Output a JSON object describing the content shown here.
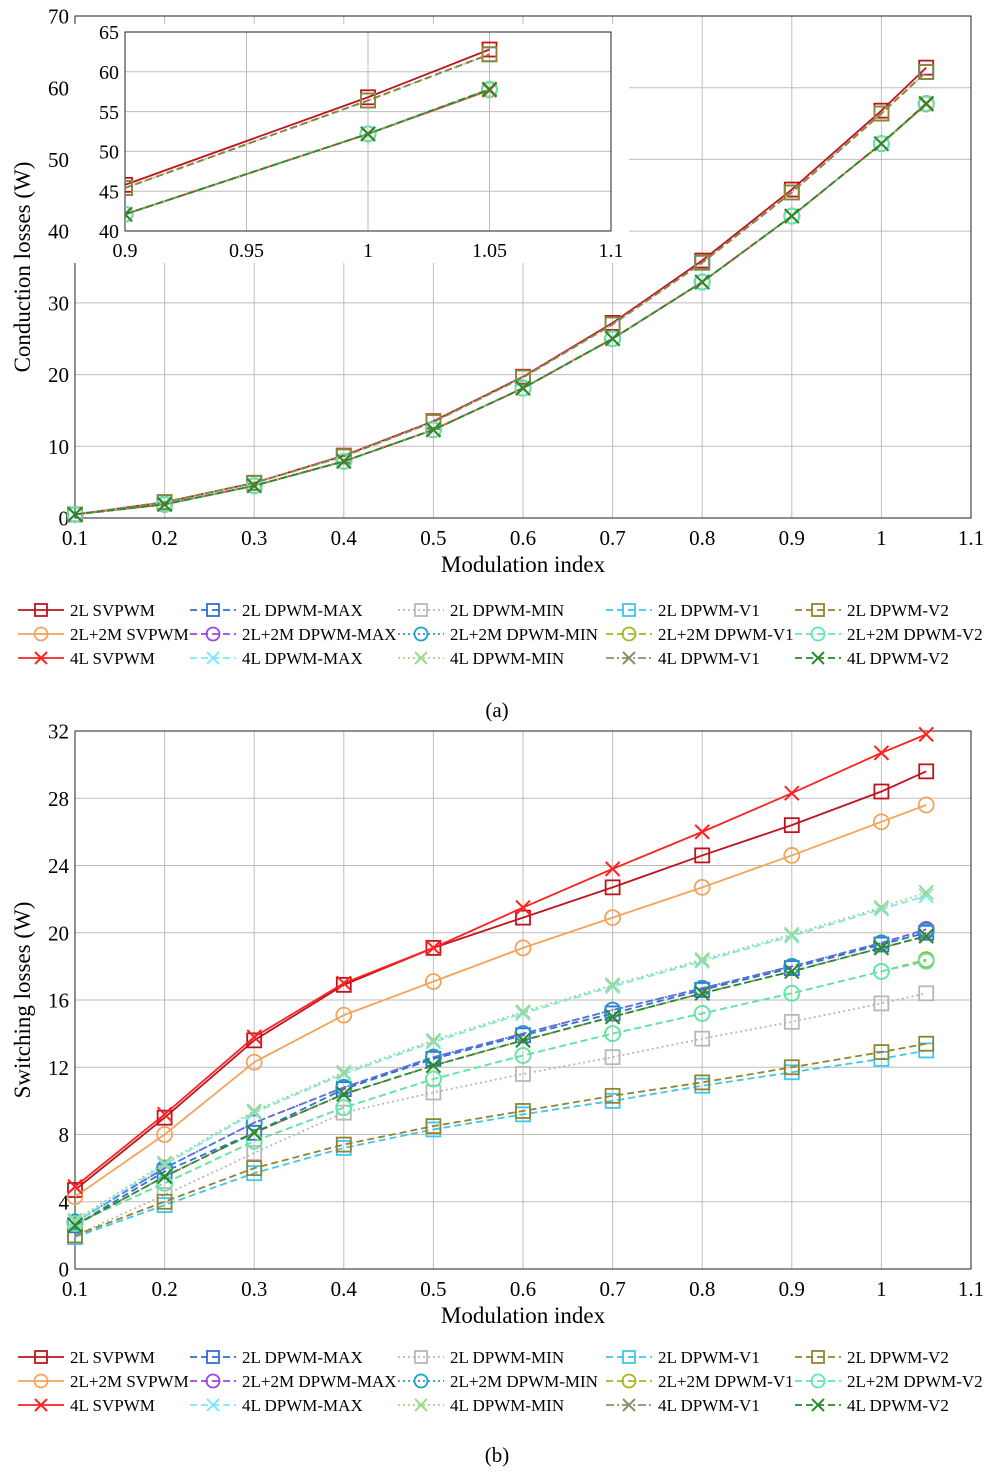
{
  "labels": {
    "a": "(a)",
    "b": "(b)"
  },
  "chart_data": [
    {
      "id": "conduction",
      "type": "line",
      "title": "",
      "xlabel": "Modulation index",
      "ylabel": "Conduction losses (W)",
      "xlim": [
        0.1,
        1.1
      ],
      "ylim": [
        0,
        70
      ],
      "xticks": [
        0.1,
        0.2,
        0.3,
        0.4,
        0.5,
        0.6,
        0.7,
        0.8,
        0.9,
        1,
        1.1
      ],
      "xtick_labels": [
        "0.1",
        "0.2",
        "0.3",
        "0.4",
        "0.5",
        "0.6",
        "0.7",
        "0.8",
        "0.9",
        "1",
        "1.1"
      ],
      "yticks": [
        0,
        10,
        20,
        30,
        40,
        50,
        60,
        70
      ],
      "ytick_labels": [
        "0",
        "10",
        "20",
        "30",
        "40",
        "50",
        "60",
        "70"
      ],
      "grid": true,
      "legend_position": "below",
      "x": [
        0.1,
        0.2,
        0.3,
        0.4,
        0.5,
        0.6,
        0.7,
        0.8,
        0.9,
        1,
        1.05
      ],
      "series": [
        {
          "name": "2L SVPWM",
          "color": "#c0131b",
          "marker": "square",
          "dash": "solid",
          "values": [
            0.5,
            2.2,
            4.9,
            8.7,
            13.5,
            19.7,
            27.2,
            35.9,
            45.8,
            56.8,
            62.8
          ]
        },
        {
          "name": "2L DPWM-MAX",
          "color": "#2f6fd8",
          "marker": "square",
          "dash": "dashed",
          "values": [
            0.5,
            2.2,
            4.9,
            8.6,
            13.4,
            19.6,
            27.0,
            35.6,
            45.4,
            56.4,
            62.2
          ]
        },
        {
          "name": "2L DPWM-MIN",
          "color": "#b8b8b8",
          "marker": "square",
          "dash": "dotted",
          "values": [
            0.5,
            2.2,
            4.9,
            8.6,
            13.4,
            19.6,
            27.0,
            35.6,
            45.4,
            56.4,
            62.2
          ]
        },
        {
          "name": "2L DPWM-V1",
          "color": "#3fc7e8",
          "marker": "square",
          "dash": "dashed",
          "values": [
            0.5,
            2.2,
            4.9,
            8.6,
            13.4,
            19.6,
            27.0,
            35.6,
            45.4,
            56.4,
            62.2
          ]
        },
        {
          "name": "2L DPWM-V2",
          "color": "#8f8432",
          "marker": "square",
          "dash": "dashed",
          "values": [
            0.5,
            2.2,
            4.9,
            8.6,
            13.4,
            19.6,
            27.0,
            35.6,
            45.4,
            56.4,
            62.2
          ]
        },
        {
          "name": "2L+2M SVPWM",
          "color": "#f5a35a",
          "marker": "circle",
          "dash": "solid",
          "values": [
            0.5,
            1.9,
            4.5,
            7.9,
            12.3,
            18.1,
            25.0,
            32.9,
            42.1,
            52.2,
            57.7
          ]
        },
        {
          "name": "2L+2M DPWM-MAX",
          "color": "#9b45e0",
          "marker": "circle",
          "dash": "dashed",
          "values": [
            0.5,
            1.9,
            4.5,
            7.9,
            12.3,
            18.1,
            25.0,
            32.9,
            42.1,
            52.2,
            57.8
          ]
        },
        {
          "name": "2L+2M DPWM-MIN",
          "color": "#1a9fc9",
          "marker": "circle",
          "dash": "dotted",
          "values": [
            0.5,
            1.9,
            4.5,
            7.9,
            12.3,
            18.1,
            25.0,
            32.9,
            42.1,
            52.2,
            57.8
          ]
        },
        {
          "name": "2L+2M DPWM-V1",
          "color": "#a5b51c",
          "marker": "circle",
          "dash": "dashed",
          "values": [
            0.5,
            1.9,
            4.5,
            7.9,
            12.3,
            18.1,
            25.0,
            32.9,
            42.1,
            52.2,
            57.8
          ]
        },
        {
          "name": "2L+2M DPWM-V2",
          "color": "#5de8b0",
          "marker": "circle",
          "dash": "dashed",
          "values": [
            0.5,
            1.9,
            4.5,
            7.9,
            12.3,
            18.1,
            25.0,
            32.9,
            42.1,
            52.2,
            57.8
          ]
        },
        {
          "name": "4L SVPWM",
          "color": "#ff2222",
          "marker": "x",
          "dash": "solid",
          "values": [
            0.5,
            1.9,
            4.5,
            7.9,
            12.3,
            18.1,
            25.0,
            32.9,
            42.1,
            52.2,
            57.7
          ]
        },
        {
          "name": "4L DPWM-MAX",
          "color": "#7ee8f5",
          "marker": "x",
          "dash": "dashed",
          "values": [
            0.5,
            1.9,
            4.5,
            7.9,
            12.3,
            18.1,
            25.0,
            32.9,
            42.1,
            52.2,
            57.8
          ]
        },
        {
          "name": "4L DPWM-MIN",
          "color": "#9fd88a",
          "marker": "x",
          "dash": "dotted",
          "values": [
            0.5,
            1.9,
            4.5,
            7.9,
            12.3,
            18.1,
            25.0,
            32.9,
            42.1,
            52.2,
            57.8
          ]
        },
        {
          "name": "4L DPWM-V1",
          "color": "#8c8c6a",
          "marker": "x",
          "dash": "dashdot",
          "values": [
            0.5,
            1.9,
            4.5,
            7.9,
            12.3,
            18.1,
            25.0,
            32.9,
            42.1,
            52.2,
            57.8
          ]
        },
        {
          "name": "4L DPWM-V2",
          "color": "#2a8a28",
          "marker": "x",
          "dash": "dashed",
          "values": [
            0.5,
            1.9,
            4.5,
            7.9,
            12.3,
            18.1,
            25.0,
            32.9,
            42.1,
            52.2,
            57.8
          ]
        }
      ],
      "inset": {
        "xlim": [
          0.9,
          1.1
        ],
        "ylim": [
          40,
          65
        ],
        "xticks": [
          0.9,
          0.95,
          1,
          1.05,
          1.1
        ],
        "xtick_labels": [
          "0.9",
          "0.95",
          "1",
          "1.05",
          "1.1"
        ],
        "yticks": [
          40,
          45,
          50,
          55,
          60,
          65
        ],
        "ytick_labels": [
          "40",
          "45",
          "50",
          "55",
          "60",
          "65"
        ]
      }
    },
    {
      "id": "switching",
      "type": "line",
      "title": "",
      "xlabel": "Modulation index",
      "ylabel": "Switching losses (W)",
      "xlim": [
        0.1,
        1.1
      ],
      "ylim": [
        0,
        32
      ],
      "xticks": [
        0.1,
        0.2,
        0.3,
        0.4,
        0.5,
        0.6,
        0.7,
        0.8,
        0.9,
        1,
        1.1
      ],
      "xtick_labels": [
        "0.1",
        "0.2",
        "0.3",
        "0.4",
        "0.5",
        "0.6",
        "0.7",
        "0.8",
        "0.9",
        "1",
        "1.1"
      ],
      "yticks": [
        0,
        4,
        8,
        12,
        16,
        20,
        24,
        28,
        32
      ],
      "ytick_labels": [
        "0",
        "4",
        "8",
        "12",
        "16",
        "20",
        "24",
        "28",
        "32"
      ],
      "grid": true,
      "legend_position": "below",
      "x": [
        0.1,
        0.2,
        0.3,
        0.4,
        0.5,
        0.6,
        0.7,
        0.8,
        0.9,
        1,
        1.05
      ],
      "series": [
        {
          "name": "2L SVPWM",
          "color": "#c0131b",
          "marker": "square",
          "dash": "solid",
          "values": [
            4.7,
            9.0,
            13.6,
            16.9,
            19.1,
            20.9,
            22.7,
            24.6,
            26.4,
            28.4,
            29.6
          ]
        },
        {
          "name": "2L DPWM-MAX",
          "color": "#2f6fd8",
          "marker": "square",
          "dash": "dashed",
          "values": [
            2.6,
            5.8,
            8.1,
            10.7,
            12.5,
            13.9,
            15.2,
            16.6,
            17.9,
            19.3,
            20.0
          ]
        },
        {
          "name": "2L DPWM-MIN",
          "color": "#b8b8b8",
          "marker": "square",
          "dash": "dotted",
          "values": [
            2.0,
            4.4,
            6.9,
            9.3,
            10.5,
            11.6,
            12.6,
            13.7,
            14.7,
            15.8,
            16.4
          ]
        },
        {
          "name": "2L DPWM-V1",
          "color": "#3fc7e8",
          "marker": "square",
          "dash": "dashed",
          "values": [
            1.9,
            3.8,
            5.7,
            7.2,
            8.3,
            9.2,
            10.0,
            10.9,
            11.7,
            12.5,
            13.0
          ]
        },
        {
          "name": "2L DPWM-V2",
          "color": "#8f8432",
          "marker": "square",
          "dash": "dashed",
          "values": [
            2.0,
            4.0,
            6.0,
            7.4,
            8.5,
            9.4,
            10.3,
            11.1,
            12.0,
            12.9,
            13.4
          ]
        },
        {
          "name": "2L+2M SVPWM",
          "color": "#f5a35a",
          "marker": "circle",
          "dash": "solid",
          "values": [
            4.3,
            8.0,
            12.3,
            15.1,
            17.1,
            19.1,
            20.9,
            22.7,
            24.6,
            26.6,
            27.6
          ]
        },
        {
          "name": "2L+2M DPWM-MAX",
          "color": "#9b45e0",
          "marker": "circle",
          "dash": "dashed",
          "values": [
            2.8,
            6.0,
            8.7,
            10.8,
            12.6,
            14.0,
            15.4,
            16.7,
            18.0,
            19.4,
            20.2
          ]
        },
        {
          "name": "2L+2M DPWM-MIN",
          "color": "#1a9fc9",
          "marker": "circle",
          "dash": "dotted",
          "values": [
            2.8,
            6.0,
            8.7,
            10.8,
            12.6,
            14.0,
            15.4,
            16.7,
            18.0,
            19.4,
            20.1
          ]
        },
        {
          "name": "2L+2M DPWM-V1",
          "color": "#a5b51c",
          "marker": "circle",
          "dash": "dashed",
          "values": [
            2.7,
            5.1,
            7.6,
            9.6,
            11.3,
            12.7,
            14.0,
            15.2,
            16.4,
            17.7,
            18.4
          ]
        },
        {
          "name": "2L+2M DPWM-V2",
          "color": "#5de8b0",
          "marker": "circle",
          "dash": "dashed",
          "values": [
            2.7,
            5.1,
            7.6,
            9.6,
            11.3,
            12.7,
            14.0,
            15.2,
            16.4,
            17.7,
            18.3
          ]
        },
        {
          "name": "4L SVPWM",
          "color": "#ff2222",
          "marker": "x",
          "dash": "solid",
          "values": [
            4.9,
            9.2,
            13.8,
            17.0,
            19.1,
            21.5,
            23.8,
            26.0,
            28.3,
            30.7,
            31.8
          ]
        },
        {
          "name": "4L DPWM-MAX",
          "color": "#7ee8f5",
          "marker": "x",
          "dash": "dashed",
          "values": [
            2.8,
            6.2,
            9.3,
            11.6,
            13.5,
            15.2,
            16.8,
            18.3,
            19.8,
            21.4,
            22.2
          ]
        },
        {
          "name": "4L DPWM-MIN",
          "color": "#9fd88a",
          "marker": "x",
          "dash": "dotted",
          "values": [
            2.9,
            6.3,
            9.4,
            11.7,
            13.6,
            15.3,
            16.9,
            18.4,
            19.9,
            21.5,
            22.4
          ]
        },
        {
          "name": "4L DPWM-V1",
          "color": "#8c8c6a",
          "marker": "x",
          "dash": "dashdot",
          "values": [
            2.6,
            5.5,
            8.1,
            10.4,
            12.1,
            13.6,
            15.0,
            16.4,
            17.7,
            19.1,
            19.8
          ]
        },
        {
          "name": "4L DPWM-V2",
          "color": "#2a8a28",
          "marker": "x",
          "dash": "dashed",
          "values": [
            2.6,
            5.5,
            8.1,
            10.4,
            12.1,
            13.6,
            15.0,
            16.4,
            17.7,
            19.1,
            19.8
          ]
        }
      ]
    }
  ]
}
